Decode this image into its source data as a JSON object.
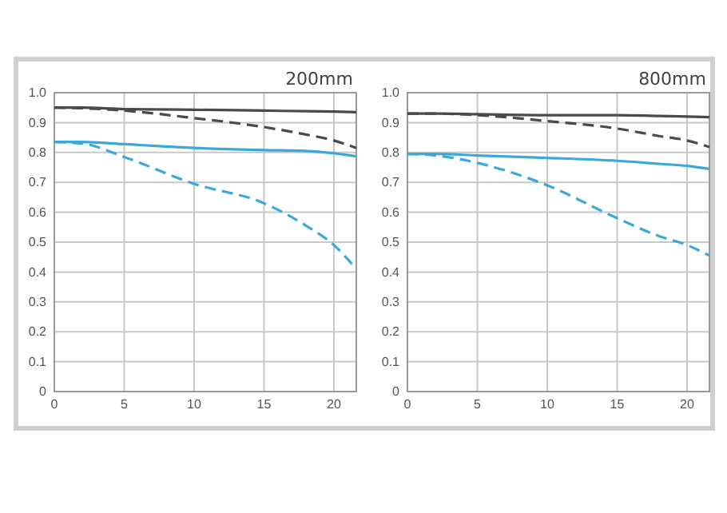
{
  "chart_data": [
    {
      "type": "line",
      "title": "200mm",
      "x": [
        0,
        2,
        5,
        10,
        15,
        18,
        20,
        21.6
      ],
      "xlim": [
        0,
        21.6
      ],
      "xticks": [
        0,
        5,
        10,
        15,
        20
      ],
      "ylim": [
        0,
        1
      ],
      "yticks": [
        {
          "value": 1,
          "label": "1.0"
        },
        0.9,
        0.8,
        0.7,
        0.6,
        0.5,
        0.4,
        0.3,
        0.2,
        0.1,
        0
      ],
      "grid": true,
      "marker": "none",
      "series": [
        {
          "color": "#4a4a4a",
          "line_style": "solid",
          "values": [
            0.95,
            0.95,
            0.945,
            0.943,
            0.94,
            0.938,
            0.937,
            0.935
          ]
        },
        {
          "color": "#4a4a4a",
          "line_style": "dashed",
          "values": [
            0.95,
            0.948,
            0.94,
            0.915,
            0.885,
            0.86,
            0.84,
            0.815
          ]
        },
        {
          "color": "#3aa8dc",
          "line_style": "solid",
          "values": [
            0.835,
            0.835,
            0.828,
            0.815,
            0.808,
            0.805,
            0.797,
            0.787
          ]
        },
        {
          "color": "#3aa8dc",
          "line_style": "dashed",
          "values": [
            0.835,
            0.83,
            0.785,
            0.695,
            0.63,
            0.555,
            0.49,
            0.41
          ]
        }
      ]
    },
    {
      "type": "line",
      "title": "800mm",
      "x": [
        0,
        2,
        5,
        10,
        15,
        18,
        20,
        21.6
      ],
      "xlim": [
        0,
        21.6
      ],
      "xticks": [
        0,
        5,
        10,
        15,
        20
      ],
      "ylim": [
        0,
        1
      ],
      "yticks": [
        {
          "value": 1,
          "label": "1.0"
        },
        0.9,
        0.8,
        0.7,
        0.6,
        0.5,
        0.4,
        0.3,
        0.2,
        0.1,
        0
      ],
      "grid": true,
      "marker": "none",
      "series": [
        {
          "color": "#4a4a4a",
          "line_style": "solid",
          "values": [
            0.93,
            0.93,
            0.928,
            0.925,
            0.925,
            0.922,
            0.92,
            0.918
          ]
        },
        {
          "color": "#4a4a4a",
          "line_style": "dashed",
          "values": [
            0.93,
            0.93,
            0.925,
            0.905,
            0.88,
            0.855,
            0.84,
            0.818
          ]
        },
        {
          "color": "#3aa8dc",
          "line_style": "solid",
          "values": [
            0.795,
            0.795,
            0.79,
            0.782,
            0.772,
            0.762,
            0.755,
            0.745
          ]
        },
        {
          "color": "#3aa8dc",
          "line_style": "dashed",
          "values": [
            0.795,
            0.79,
            0.765,
            0.69,
            0.58,
            0.52,
            0.49,
            0.455
          ]
        }
      ]
    }
  ]
}
